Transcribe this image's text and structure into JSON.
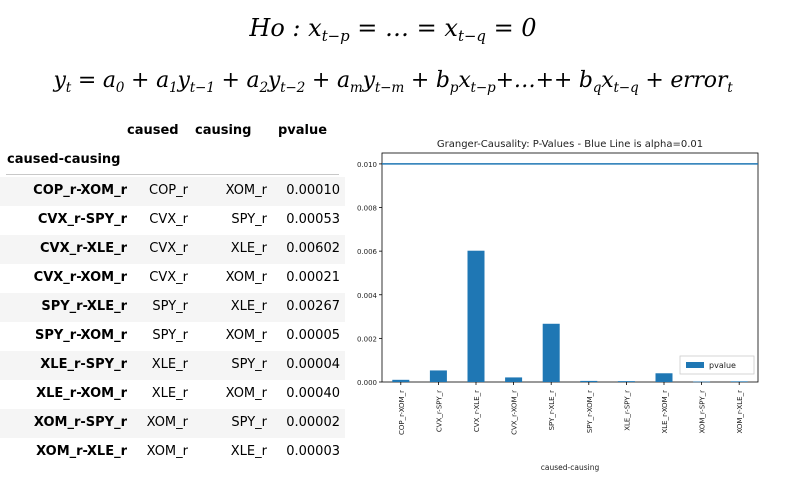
{
  "equations": {
    "hypothesis": "Ho : x_{t−p} = … = x_{t−q} = 0",
    "model": "y_t = a_0 + a_1 y_{t−1} + a_2 y_{t−2} + a_m y_{t−m} + b_p x_{t−p} + … + + b_q x_{t−q} + error_t"
  },
  "table": {
    "columns": [
      "caused",
      "causing",
      "pvalue"
    ],
    "index_name": "caused-causing",
    "rows": [
      {
        "index": "COP_r-XOM_r",
        "caused": "COP_r",
        "causing": "XOM_r",
        "pvalue": "0.00010"
      },
      {
        "index": "CVX_r-SPY_r",
        "caused": "CVX_r",
        "causing": "SPY_r",
        "pvalue": "0.00053"
      },
      {
        "index": "CVX_r-XLE_r",
        "caused": "CVX_r",
        "causing": "XLE_r",
        "pvalue": "0.00602"
      },
      {
        "index": "CVX_r-XOM_r",
        "caused": "CVX_r",
        "causing": "XOM_r",
        "pvalue": "0.00021"
      },
      {
        "index": "SPY_r-XLE_r",
        "caused": "SPY_r",
        "causing": "XLE_r",
        "pvalue": "0.00267"
      },
      {
        "index": "SPY_r-XOM_r",
        "caused": "SPY_r",
        "causing": "XOM_r",
        "pvalue": "0.00005"
      },
      {
        "index": "XLE_r-SPY_r",
        "caused": "XLE_r",
        "causing": "SPY_r",
        "pvalue": "0.00004"
      },
      {
        "index": "XLE_r-XOM_r",
        "caused": "XLE_r",
        "causing": "XOM_r",
        "pvalue": "0.00040"
      },
      {
        "index": "XOM_r-SPY_r",
        "caused": "XOM_r",
        "causing": "SPY_r",
        "pvalue": "0.00002"
      },
      {
        "index": "XOM_r-XLE_r",
        "caused": "XOM_r",
        "causing": "XLE_r",
        "pvalue": "0.00003"
      }
    ]
  },
  "chart_data": {
    "type": "bar",
    "title": "Granger-Causality: P-Values - Blue Line is alpha=0.01",
    "xlabel": "caused-causing",
    "ylabel": "",
    "categories": [
      "COP_r-XOM_r",
      "CVX_r-SPY_r",
      "CVX_r-XLE_r",
      "CVX_r-XOM_r",
      "SPY_r-XLE_r",
      "SPY_r-XOM_r",
      "XLE_r-SPY_r",
      "XLE_r-XOM_r",
      "XOM_r-SPY_r",
      "XOM_r-XLE_r"
    ],
    "series": [
      {
        "name": "pvalue",
        "values": [
          0.0001,
          0.00053,
          0.00602,
          0.00021,
          0.00267,
          5e-05,
          4e-05,
          0.0004,
          2e-05,
          3e-05
        ]
      }
    ],
    "reference_line": 0.01,
    "ylim": [
      0,
      0.0105
    ],
    "yticks": [
      "0.000",
      "0.002",
      "0.004",
      "0.006",
      "0.008",
      "0.010"
    ],
    "legend": "lower right",
    "grid": false,
    "colors": {
      "bar": "#1f77b4",
      "line": "#1f77b4"
    }
  }
}
